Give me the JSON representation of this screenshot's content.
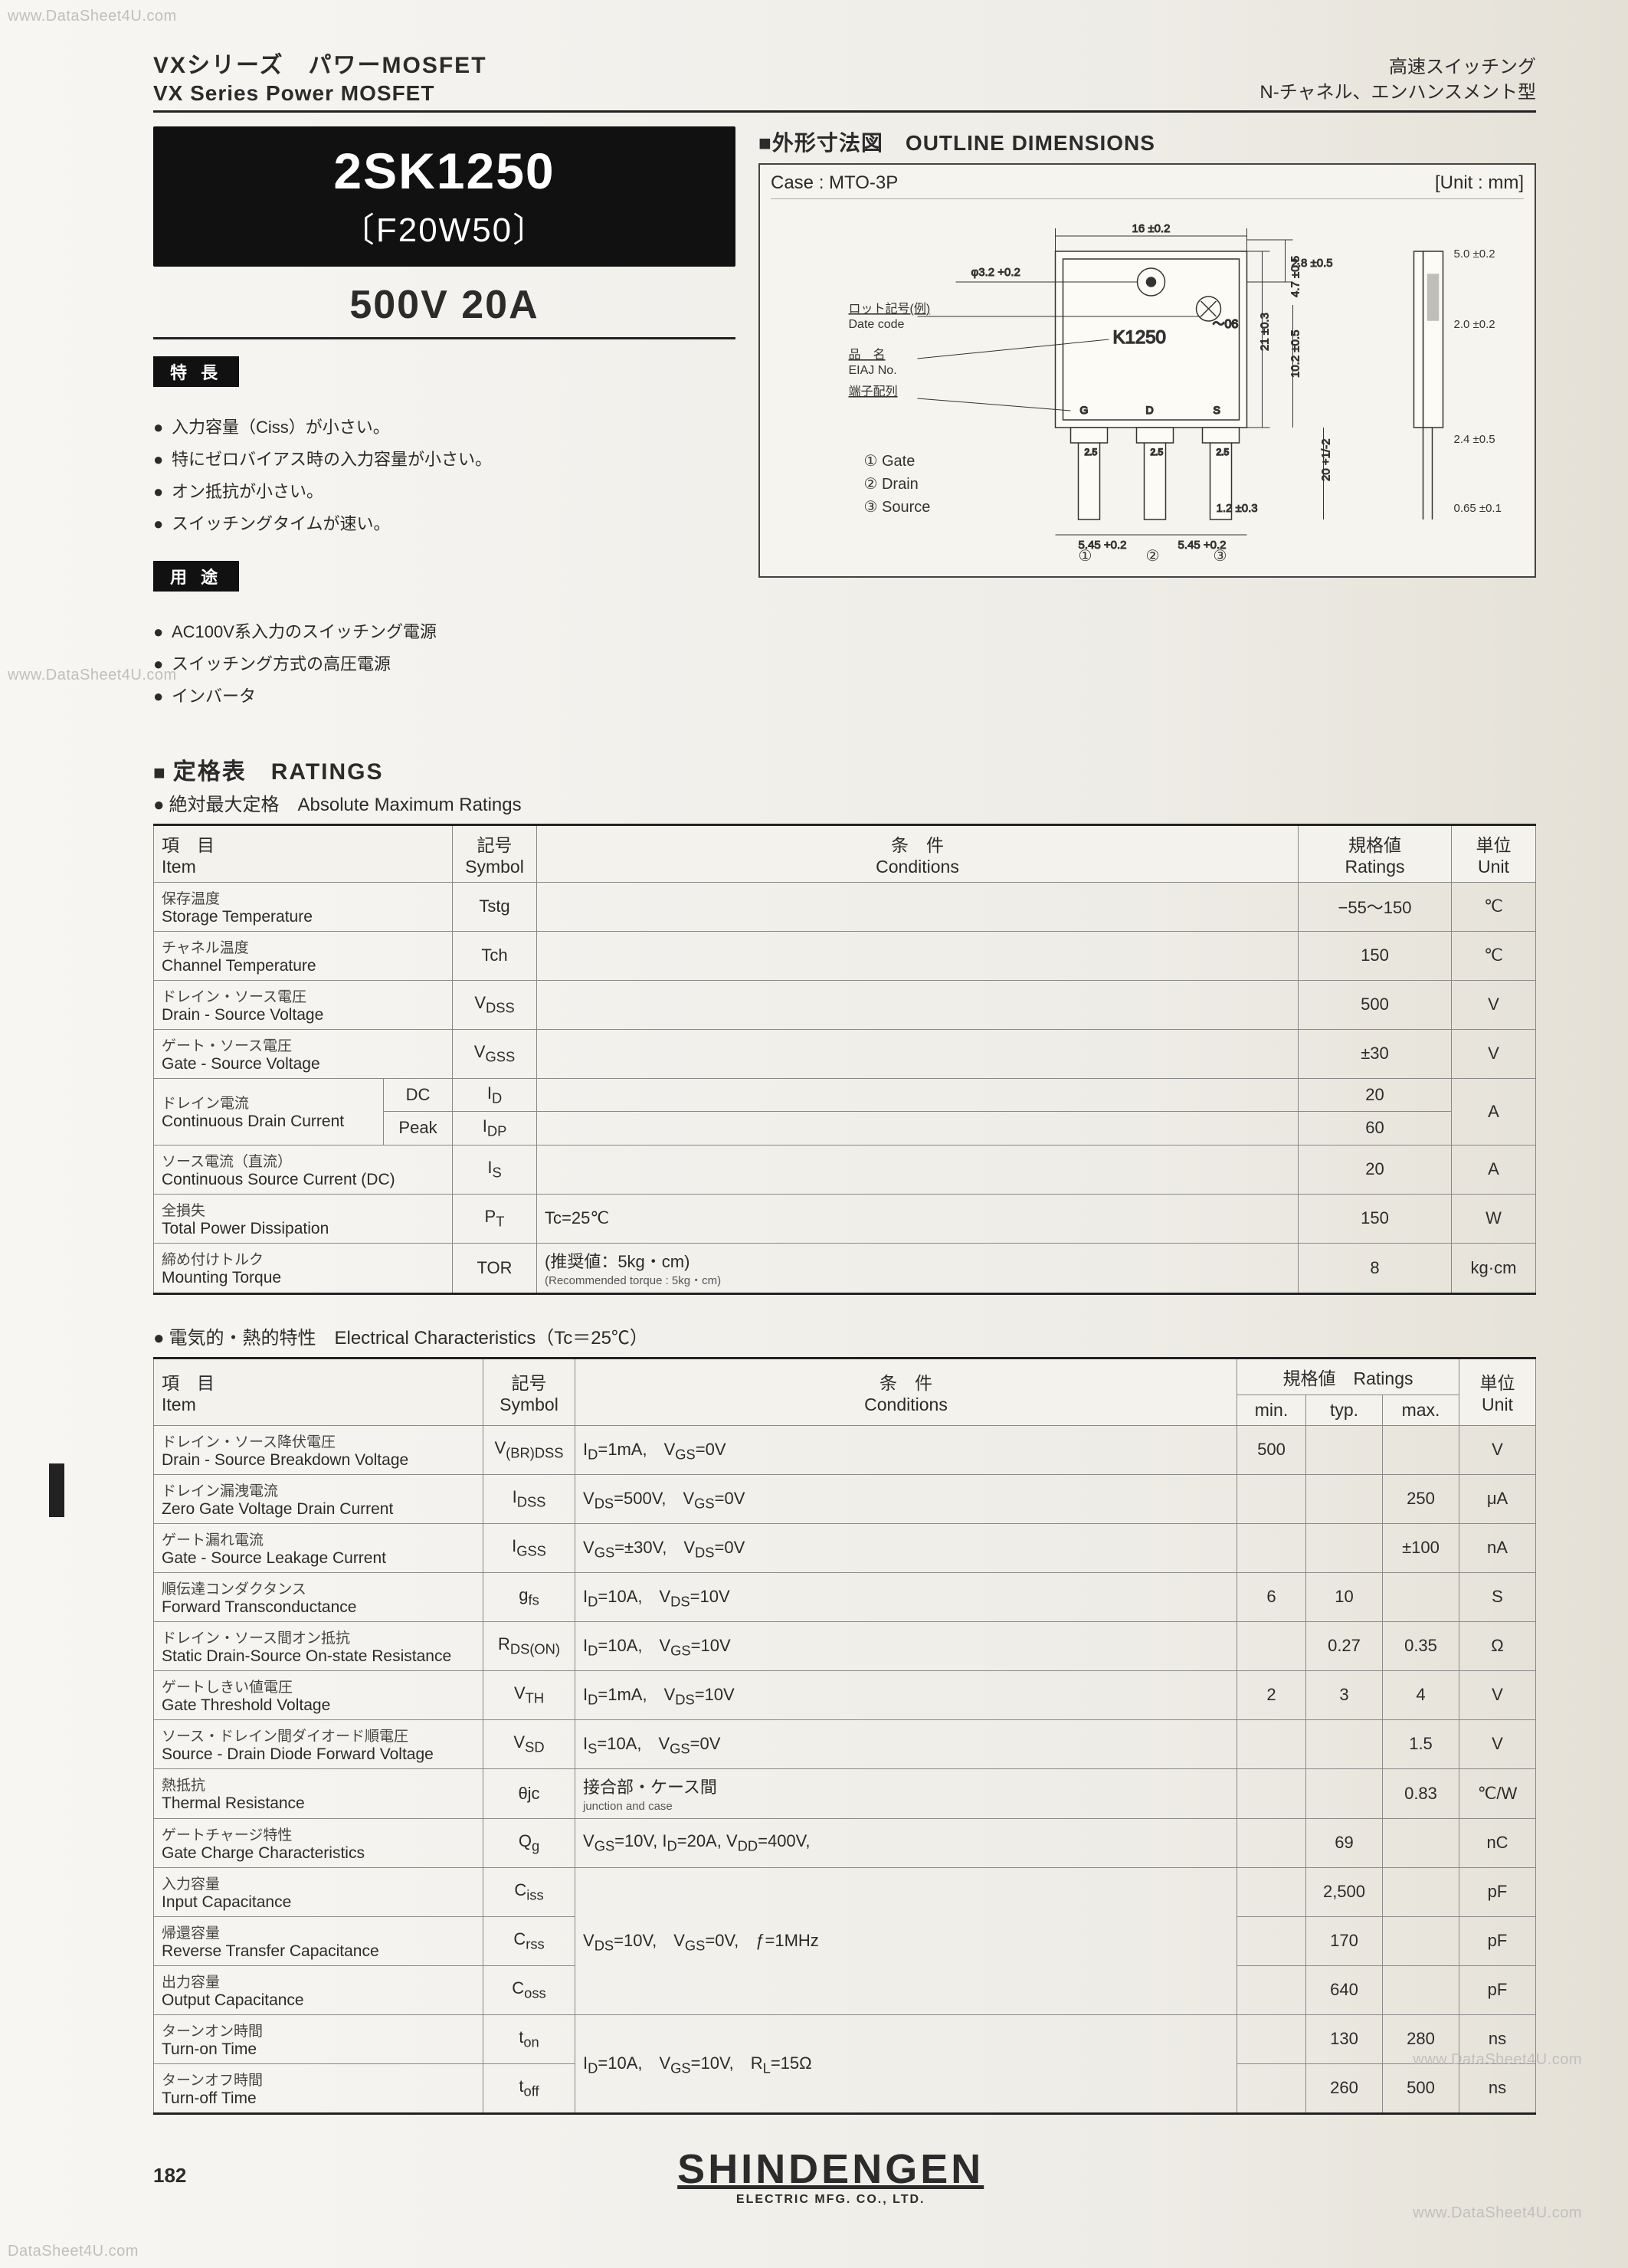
{
  "watermark": "www.DataSheet4U.com",
  "footerWm": "DataSheet4U.com",
  "header": {
    "jp": "VXシリーズ　パワーMOSFET",
    "en": "VX Series Power MOSFET",
    "right1": "高速スイッチング",
    "right2": "N-チャネル、エンハンスメント型"
  },
  "part": {
    "main": "2SK1250",
    "sub": "〔F20W50〕",
    "rated": "500V 20A"
  },
  "feat": {
    "tag": "特 長",
    "items": [
      "入力容量（Ciss）が小さい。",
      "特にゼロバイアス時の入力容量が小さい。",
      "オン抵抗が小さい。",
      "スイッチングタイムが速い。"
    ],
    "indent_idx": 1
  },
  "appl": {
    "tag": "用 途",
    "items": [
      "AC100V系入力のスイッチング電源",
      "スイッチング方式の高圧電源",
      "インバータ"
    ]
  },
  "outline": {
    "title": "■外形寸法図　OUTLINE DIMENSIONS",
    "case": "Case : MTO-3P",
    "unit": "[Unit : mm]",
    "labels": {
      "date": "ロット記号(例)",
      "date_en": "Date code",
      "name": "品　名",
      "name_en": "EIAJ No.",
      "pin": "端子配列",
      "mark": "K1250",
      "dc": "～06",
      "pins": {
        "g": "① Gate",
        "d": "② Drain",
        "s": "③ Source"
      },
      "p1": "①",
      "p2": "②",
      "p3": "③"
    },
    "dims": {
      "w": "16 ±0.2",
      "hole": "φ3.2 +0.2",
      "edge": "2.8 ±0.5",
      "body_h": "21 ±0.3",
      "mid": "10.2 ±0.5",
      "upper": "4.7 ±0.5",
      "lead_sp": "5.45 +0.2",
      "lead_sp2": "5.45 +0.2",
      "lead_gap": "1.2 ±0.3",
      "slot": "2.5",
      "tot_h": "20 +1/-2",
      "side_top": "5.0 ±0.2",
      "side_b": "2.0 ±0.2",
      "side_l": "2.4 ±0.5",
      "side_t": "0.65 ±0.1"
    }
  },
  "ratings": {
    "heading": "定格表　RATINGS",
    "sub": "絶対最大定格　Absolute Maximum Ratings",
    "head": {
      "item": "項　目",
      "item_en": "Item",
      "sym": "記号",
      "sym_en": "Symbol",
      "cond": "条　件",
      "cond_en": "Conditions",
      "val": "規格値",
      "val_en": "Ratings",
      "unit": "単位",
      "unit_en": "Unit"
    },
    "rows": [
      {
        "jp": "保存温度",
        "en": "Storage Temperature",
        "sym": "Tstg",
        "cond": "",
        "val": "−55〜150",
        "unit": "℃"
      },
      {
        "jp": "チャネル温度",
        "en": "Channel Temperature",
        "sym": "Tch",
        "cond": "",
        "val": "150",
        "unit": "℃"
      },
      {
        "jp": "ドレイン・ソース電圧",
        "en": "Drain - Source Voltage",
        "sym": "V<sub>DSS</sub>",
        "cond": "",
        "val": "500",
        "unit": "V"
      },
      {
        "jp": "ゲート・ソース電圧",
        "en": "Gate - Source Voltage",
        "sym": "V<sub>GSS</sub>",
        "cond": "",
        "val": "±30",
        "unit": "V"
      }
    ],
    "drain": {
      "jp": "ドレイン電流",
      "en": "Continuous Drain Current",
      "dc": "DC",
      "pk": "Peak",
      "sym_dc": "I<sub>D</sub>",
      "sym_pk": "I<sub>DP</sub>",
      "val_dc": "20",
      "val_pk": "60",
      "unit": "A"
    },
    "rows2": [
      {
        "jp": "ソース電流（直流）",
        "en": "Continuous Source Current (DC)",
        "sym": "I<sub>S</sub>",
        "cond": "",
        "val": "20",
        "unit": "A"
      },
      {
        "jp": "全損失",
        "en": "Total Power Dissipation",
        "sym": "P<sub>T</sub>",
        "cond": "Tc=25℃",
        "val": "150",
        "unit": "W"
      },
      {
        "jp": "締め付けトルク",
        "en": "Mounting Torque",
        "sym": "TOR",
        "cond": "(推奨値：5kg・cm)",
        "cond2": "(Recommended torque : 5kg・cm)",
        "val": "8",
        "unit": "kg·cm"
      }
    ]
  },
  "elec": {
    "sub": "電気的・熱的特性　Electrical Characteristics（Tc＝25℃）",
    "head": {
      "item": "項　目",
      "item_en": "Item",
      "sym": "記号",
      "sym_en": "Symbol",
      "cond": "条　件",
      "cond_en": "Conditions",
      "val": "規格値　Ratings",
      "min": "min.",
      "typ": "typ.",
      "max": "max.",
      "unit": "単位",
      "unit_en": "Unit"
    },
    "rows": [
      {
        "jp": "ドレイン・ソース降伏電圧",
        "en": "Drain - Source Breakdown Voltage",
        "sym": "V<sub>(BR)DSS</sub>",
        "cond": "I<sub>D</sub>=1mA,　V<sub>GS</sub>=0V",
        "min": "500",
        "typ": "",
        "max": "",
        "unit": "V"
      },
      {
        "jp": "ドレイン漏洩電流",
        "en": "Zero Gate Voltage Drain Current",
        "sym": "I<sub>DSS</sub>",
        "cond": "V<sub>DS</sub>=500V,　V<sub>GS</sub>=0V",
        "min": "",
        "typ": "",
        "max": "250",
        "unit": "μA"
      },
      {
        "jp": "ゲート漏れ電流",
        "en": "Gate - Source Leakage Current",
        "sym": "I<sub>GSS</sub>",
        "cond": "V<sub>GS</sub>=±30V,　V<sub>DS</sub>=0V",
        "min": "",
        "typ": "",
        "max": "±100",
        "unit": "nA"
      },
      {
        "jp": "順伝達コンダクタンス",
        "en": "Forward Transconductance",
        "sym": "g<sub>fs</sub>",
        "cond": "I<sub>D</sub>=10A,　V<sub>DS</sub>=10V",
        "min": "6",
        "typ": "10",
        "max": "",
        "unit": "S"
      },
      {
        "jp": "ドレイン・ソース間オン抵抗",
        "en": "Static Drain-Source On-state Resistance",
        "sym": "R<sub>DS(ON)</sub>",
        "cond": "I<sub>D</sub>=10A,　V<sub>GS</sub>=10V",
        "min": "",
        "typ": "0.27",
        "max": "0.35",
        "unit": "Ω"
      },
      {
        "jp": "ゲートしきい値電圧",
        "en": "Gate Threshold Voltage",
        "sym": "V<sub>TH</sub>",
        "cond": "I<sub>D</sub>=1mA,　V<sub>DS</sub>=10V",
        "min": "2",
        "typ": "3",
        "max": "4",
        "unit": "V"
      },
      {
        "jp": "ソース・ドレイン間ダイオード順電圧",
        "en": "Source - Drain Diode Forward Voltage",
        "sym": "V<sub>SD</sub>",
        "cond": "I<sub>S</sub>=10A,　V<sub>GS</sub>=0V",
        "min": "",
        "typ": "",
        "max": "1.5",
        "unit": "V"
      },
      {
        "jp": "熱抵抗",
        "en": "Thermal Resistance",
        "sym": "θjc",
        "cond": "接合部・ケース間",
        "cond2": "junction and case",
        "min": "",
        "typ": "",
        "max": "0.83",
        "unit": "℃/W"
      },
      {
        "jp": "ゲートチャージ特性",
        "en": "Gate Charge Characteristics",
        "sym": "Q<sub>g</sub>",
        "cond": "V<sub>GS</sub>=10V, I<sub>D</sub>=20A, V<sub>DD</sub>=400V,",
        "min": "",
        "typ": "69",
        "max": "",
        "unit": "nC"
      }
    ],
    "cap": {
      "cond": "V<sub>DS</sub>=10V,　V<sub>GS</sub>=0V,　ƒ=1MHz",
      "rows": [
        {
          "jp": "入力容量",
          "en": "Input Capacitance",
          "sym": "C<sub>iss</sub>",
          "typ": "2,500",
          "unit": "pF"
        },
        {
          "jp": "帰還容量",
          "en": "Reverse Transfer Capacitance",
          "sym": "C<sub>rss</sub>",
          "typ": "170",
          "unit": "pF"
        },
        {
          "jp": "出力容量",
          "en": "Output Capacitance",
          "sym": "C<sub>oss</sub>",
          "typ": "640",
          "unit": "pF"
        }
      ]
    },
    "time": {
      "cond": "I<sub>D</sub>=10A,　V<sub>GS</sub>=10V,　R<sub>L</sub>=15Ω",
      "rows": [
        {
          "jp": "ターンオン時間",
          "en": "Turn-on Time",
          "sym": "t<sub>on</sub>",
          "typ": "130",
          "max": "280",
          "unit": "ns"
        },
        {
          "jp": "ターンオフ時間",
          "en": "Turn-off Time",
          "sym": "t<sub>off</sub>",
          "typ": "260",
          "max": "500",
          "unit": "ns"
        }
      ]
    }
  },
  "footer": {
    "page": "182",
    "brand": "SHINDENGEN",
    "brandSub": "ELECTRIC MFG. CO., LTD."
  }
}
